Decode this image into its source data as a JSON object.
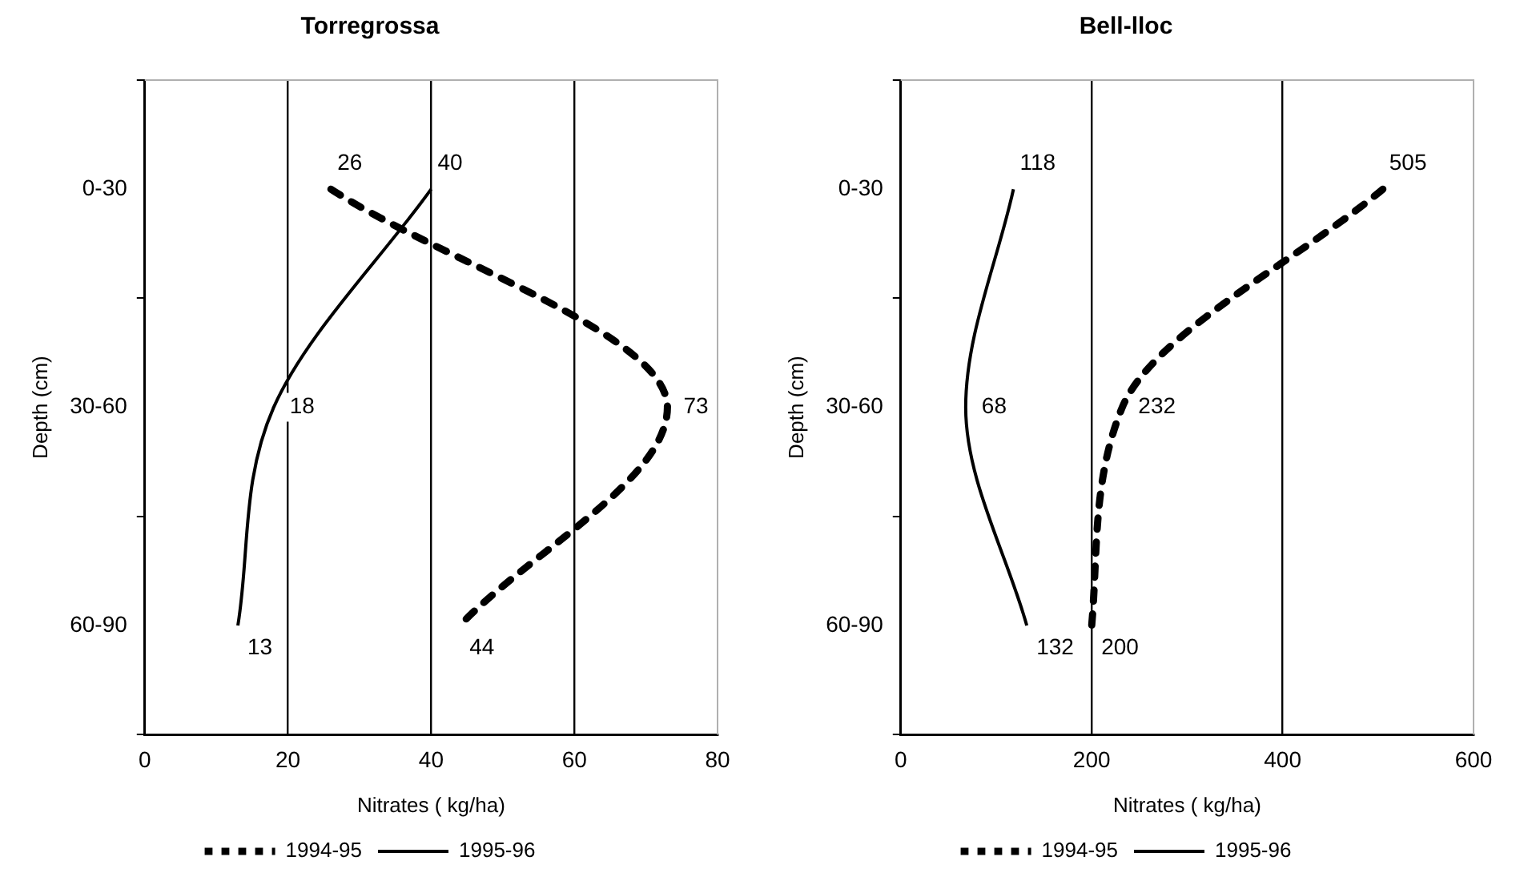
{
  "chart_data": [
    {
      "type": "line",
      "title": "Torregrossa",
      "xlabel": "Nitrates ( kg/ha)",
      "ylabel": "Depth (cm)",
      "categories": [
        "0-30",
        "30-60",
        "60-90"
      ],
      "orientation": "horizontal",
      "xlim": [
        0,
        80
      ],
      "xticks": [
        0,
        20,
        40,
        60,
        80
      ],
      "grid": "x",
      "legend": "bottom",
      "data_labels": true,
      "series": [
        {
          "name": "1994-95",
          "color": "#000000",
          "line_style": "dashed",
          "values": [
            26,
            73,
            44
          ]
        },
        {
          "name": "1995-96",
          "color": "#000000",
          "line_style": "solid",
          "values": [
            40,
            18,
            13
          ]
        }
      ]
    },
    {
      "type": "line",
      "title": "Bell-lloc",
      "xlabel": "Nitrates ( kg/ha)",
      "ylabel": "Depth (cm)",
      "categories": [
        "0-30",
        "30-60",
        "60-90"
      ],
      "orientation": "horizontal",
      "xlim": [
        0,
        600
      ],
      "xticks": [
        0,
        200,
        400,
        600
      ],
      "grid": "x",
      "legend": "bottom",
      "data_labels": true,
      "series": [
        {
          "name": "1994-95",
          "color": "#000000",
          "line_style": "dashed",
          "values": [
            505,
            232,
            200
          ]
        },
        {
          "name": "1995-96",
          "color": "#000000",
          "line_style": "solid",
          "values": [
            118,
            68,
            132
          ]
        }
      ]
    }
  ]
}
